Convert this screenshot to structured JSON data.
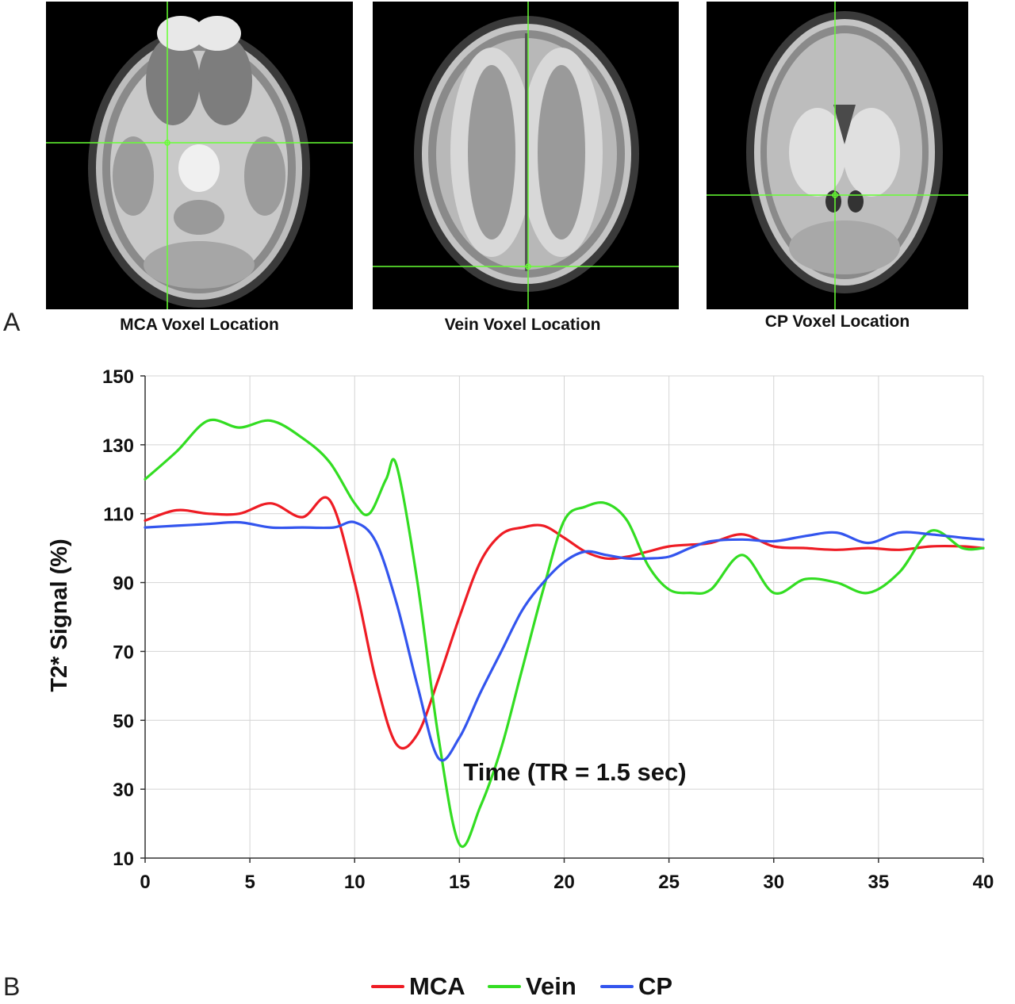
{
  "panels": {
    "a_label": "A",
    "b_label": "B",
    "images": [
      {
        "caption": "MCA Voxel Location",
        "icon": "axial-mri-slice-icon"
      },
      {
        "caption": "Vein Voxel Location",
        "icon": "axial-mri-slice-icon"
      },
      {
        "caption": "CP Voxel Location",
        "icon": "axial-mri-slice-icon"
      }
    ],
    "crosshair_color": "#66ff33"
  },
  "chart_data": {
    "type": "line",
    "title": "",
    "xlabel": "Time (TR = 1.5 sec)",
    "ylabel": "T2* Signal (%)",
    "xlim": [
      0,
      40
    ],
    "ylim": [
      10,
      150
    ],
    "xticks": [
      0,
      5,
      10,
      15,
      20,
      25,
      30,
      35,
      40
    ],
    "yticks": [
      10,
      30,
      50,
      70,
      90,
      110,
      130,
      150
    ],
    "grid": true,
    "legend_position": "bottom-center",
    "series": [
      {
        "name": "MCA",
        "color": "#ee1c24",
        "x": [
          0,
          1.5,
          3,
          4.5,
          6,
          7.5,
          8.8,
          10,
          11,
          12,
          13,
          14,
          15,
          16,
          17,
          18,
          19,
          20,
          21,
          22,
          23,
          24,
          25,
          26,
          27,
          28.5,
          30,
          31.5,
          33,
          34.5,
          36,
          37.5,
          39,
          40
        ],
        "y": [
          108,
          111,
          110,
          110,
          113,
          109,
          114,
          90,
          62,
          43,
          46,
          62,
          80,
          96,
          104,
          106,
          106.5,
          103,
          99,
          97,
          97.5,
          99,
          100.5,
          101,
          101.5,
          104,
          100.5,
          100,
          99.5,
          100,
          99.5,
          100.5,
          100.5,
          100
        ]
      },
      {
        "name": "Vein",
        "color": "#33dd22",
        "x": [
          0,
          1.5,
          3,
          4.5,
          6,
          7.5,
          8.8,
          10,
          10.7,
          11.5,
          12,
          13,
          14,
          15,
          16,
          17,
          18,
          19,
          20,
          21,
          22,
          23,
          24,
          25,
          26,
          27,
          28.5,
          30,
          31.5,
          33,
          34.5,
          36,
          37.5,
          39,
          40
        ],
        "y": [
          120,
          128,
          137,
          135,
          137,
          132,
          125,
          113,
          110,
          120,
          124,
          90,
          45,
          14,
          25,
          42,
          65,
          88,
          108,
          112,
          113,
          108,
          95,
          88,
          87,
          88,
          98,
          87,
          91,
          90,
          87,
          93,
          105,
          100,
          100
        ]
      },
      {
        "name": "CP",
        "color": "#3355ee",
        "x": [
          0,
          1.5,
          3,
          4.5,
          6,
          7.5,
          9,
          10,
          11,
          12,
          13,
          14,
          15,
          16,
          17,
          18,
          19,
          20,
          21,
          22,
          23,
          24,
          25,
          26,
          27,
          28.5,
          30,
          31.5,
          33,
          34.5,
          36,
          37.5,
          39,
          40
        ],
        "y": [
          106,
          106.5,
          107,
          107.5,
          106,
          106,
          106,
          107.5,
          102,
          84,
          60,
          39,
          45,
          58,
          70,
          82,
          90,
          96,
          99,
          98,
          97,
          97,
          97.5,
          100,
          102,
          102.5,
          102,
          103.5,
          104.5,
          101.5,
          104.5,
          104,
          103,
          102.5
        ]
      }
    ]
  }
}
